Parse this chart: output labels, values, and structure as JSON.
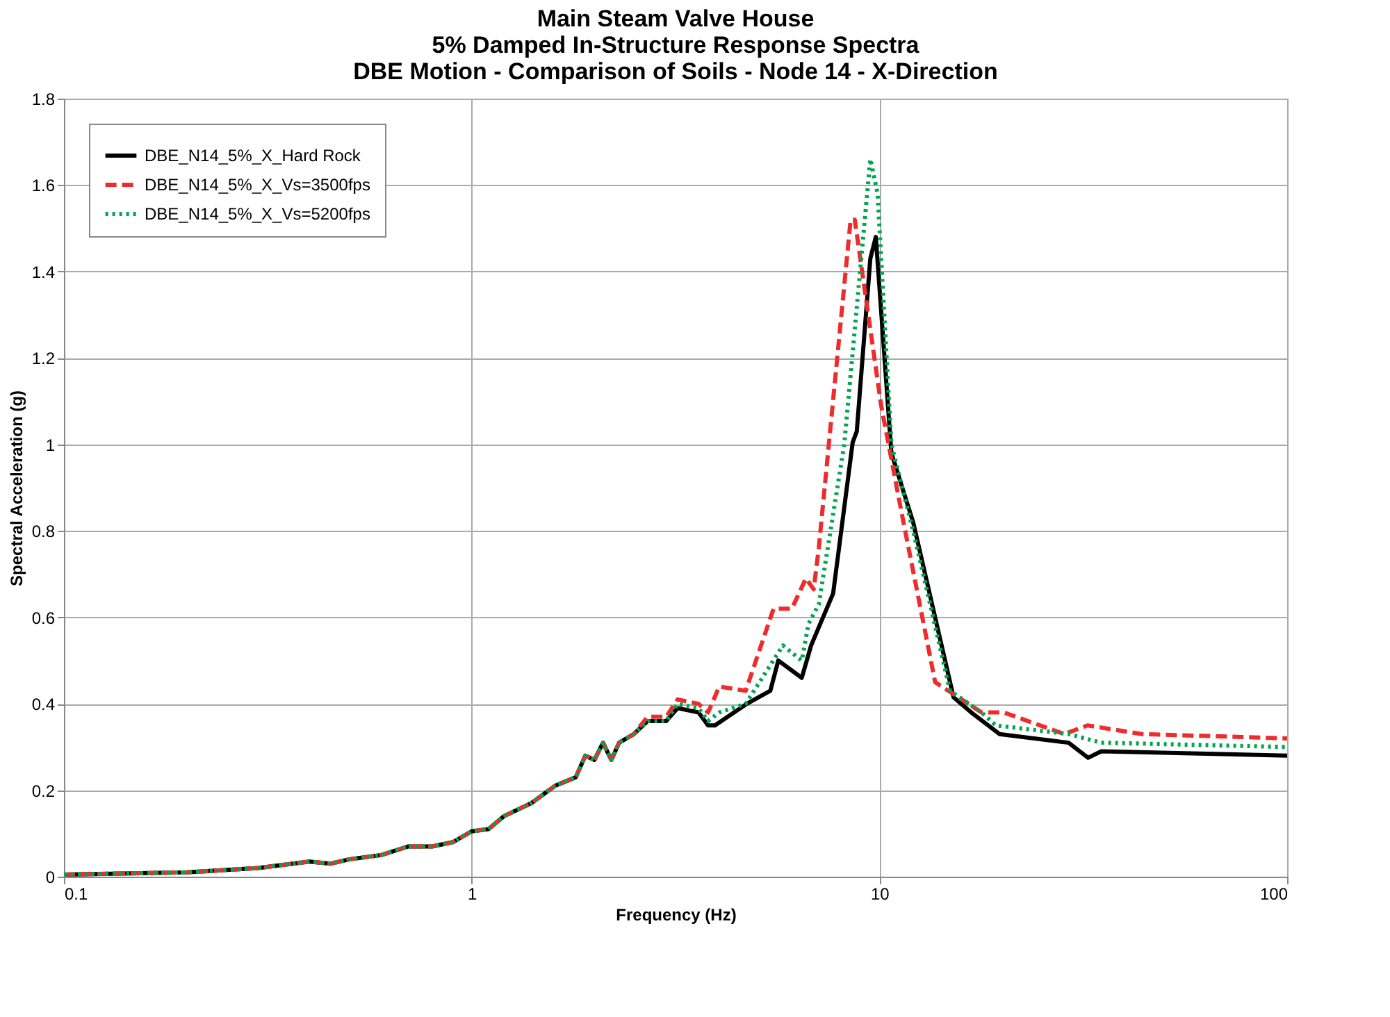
{
  "chart_data": {
    "type": "line",
    "title": "Main Steam Valve House\n5% Damped In-Structure Response Spectra\nDBE Motion - Comparison of Soils - Node 14 - X-Direction",
    "xlabel": "Frequency (Hz)",
    "ylabel": "Spectral Acceleration (g)",
    "log": "x",
    "xlim": [
      0.1,
      100
    ],
    "xticks": [
      0.1,
      1,
      10,
      100
    ],
    "ylim": [
      0,
      1.8
    ],
    "yticks": [
      0,
      0.2,
      0.4,
      0.6,
      0.8,
      1,
      1.2,
      1.4,
      1.6,
      1.8
    ],
    "grid": true,
    "legend": "top left",
    "marker": "none",
    "series": [
      {
        "name": "DBE_N14_5%_X_Hard Rock",
        "color": "#000000",
        "line_style": "solid",
        "x": [
          0.1,
          0.2,
          0.3,
          0.4,
          0.45,
          0.5,
          0.6,
          0.7,
          0.8,
          0.9,
          1.0,
          1.1,
          1.2,
          1.4,
          1.6,
          1.8,
          1.9,
          2.0,
          2.1,
          2.2,
          2.3,
          2.5,
          2.7,
          3.0,
          3.2,
          3.6,
          3.8,
          3.95,
          4.73,
          5.4,
          5.65,
          6.45,
          6.8,
          7.7,
          8.6,
          8.8,
          9.5,
          9.8,
          10.7,
          12.1,
          15.2,
          16.8,
          19.7,
          29.1,
          32.5,
          35,
          100
        ],
        "values": [
          0.005,
          0.01,
          0.02,
          0.035,
          0.03,
          0.04,
          0.05,
          0.07,
          0.07,
          0.08,
          0.105,
          0.11,
          0.14,
          0.17,
          0.21,
          0.23,
          0.28,
          0.27,
          0.31,
          0.27,
          0.31,
          0.33,
          0.36,
          0.36,
          0.39,
          0.38,
          0.35,
          0.35,
          0.4,
          0.43,
          0.5,
          0.46,
          0.535,
          0.655,
          1.005,
          1.03,
          1.43,
          1.48,
          0.98,
          0.82,
          0.415,
          0.38,
          0.33,
          0.31,
          0.275,
          0.29,
          0.28
        ]
      },
      {
        "name": "DBE_N14_5%_X_Vs=3500fps",
        "color": "#ee2c2c",
        "line_style": "dashed",
        "x": [
          0.1,
          0.2,
          0.3,
          0.4,
          0.45,
          0.5,
          0.6,
          0.7,
          0.8,
          0.9,
          1.0,
          1.1,
          1.2,
          1.4,
          1.6,
          1.8,
          1.9,
          2.0,
          2.1,
          2.2,
          2.3,
          2.5,
          2.7,
          3.0,
          3.2,
          3.6,
          3.8,
          4.05,
          4.7,
          5.5,
          6.1,
          6.6,
          6.9,
          7.1,
          8.5,
          8.7,
          10.1,
          11.4,
          13.7,
          17.8,
          20.2,
          28.4,
          32.4,
          44,
          100
        ],
        "values": [
          0.005,
          0.01,
          0.02,
          0.035,
          0.03,
          0.04,
          0.05,
          0.07,
          0.07,
          0.08,
          0.105,
          0.11,
          0.14,
          0.17,
          0.21,
          0.23,
          0.28,
          0.27,
          0.31,
          0.27,
          0.31,
          0.33,
          0.37,
          0.37,
          0.41,
          0.4,
          0.38,
          0.44,
          0.43,
          0.62,
          0.62,
          0.69,
          0.665,
          0.76,
          1.52,
          1.52,
          1.09,
          0.83,
          0.45,
          0.38,
          0.38,
          0.33,
          0.35,
          0.33,
          0.32
        ]
      },
      {
        "name": "DBE_N14_5%_X_Vs=5200fps",
        "color": "#00a550",
        "line_style": "dotted",
        "x": [
          0.1,
          0.2,
          0.3,
          0.4,
          0.45,
          0.5,
          0.6,
          0.7,
          0.8,
          0.9,
          1.0,
          1.1,
          1.2,
          1.4,
          1.6,
          1.8,
          1.9,
          2.0,
          2.1,
          2.2,
          2.3,
          2.5,
          2.7,
          3.0,
          3.2,
          3.6,
          3.8,
          4.05,
          4.7,
          5.8,
          6.45,
          6.7,
          7.1,
          8.2,
          9.5,
          9.9,
          10.7,
          12.1,
          14.9,
          17.8,
          19.3,
          29.1,
          35,
          100
        ],
        "values": [
          0.005,
          0.01,
          0.02,
          0.035,
          0.03,
          0.04,
          0.05,
          0.07,
          0.07,
          0.08,
          0.105,
          0.11,
          0.14,
          0.17,
          0.21,
          0.23,
          0.28,
          0.27,
          0.31,
          0.27,
          0.31,
          0.33,
          0.36,
          0.36,
          0.4,
          0.39,
          0.36,
          0.38,
          0.4,
          0.535,
          0.5,
          0.585,
          0.63,
          1.0,
          1.66,
          1.58,
          1.0,
          0.8,
          0.43,
          0.38,
          0.35,
          0.33,
          0.31,
          0.3
        ]
      }
    ]
  }
}
